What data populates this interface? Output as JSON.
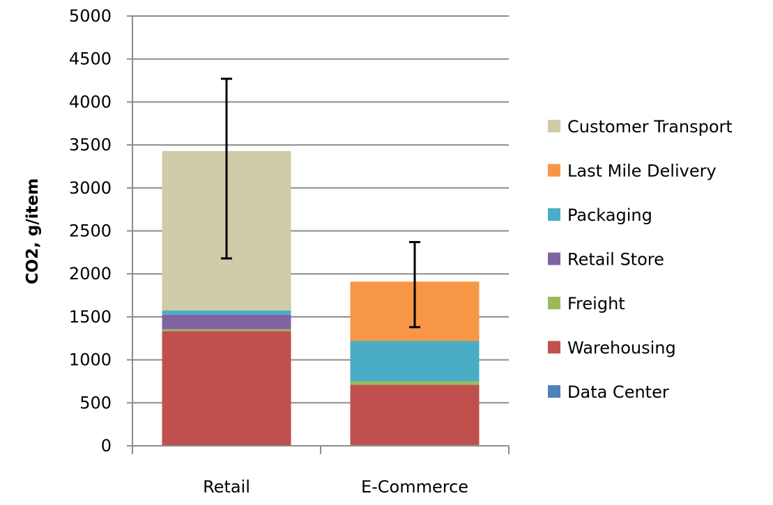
{
  "chart_data": {
    "type": "bar",
    "stacked": true,
    "title": "",
    "xlabel": "",
    "ylabel": "CO2, g/item",
    "ylim": [
      0,
      5000
    ],
    "yticks": [
      0,
      500,
      1000,
      1500,
      2000,
      2500,
      3000,
      3500,
      4000,
      4500,
      5000
    ],
    "grid": true,
    "legend_position": "right",
    "categories": [
      "Retail",
      "E-Commerce"
    ],
    "series": [
      {
        "name": "Data Center",
        "color": "#4F81BD",
        "values": [
          5,
          10
        ]
      },
      {
        "name": "Warehousing",
        "color": "#C0504D",
        "values": [
          1330,
          700
        ]
      },
      {
        "name": "Freight",
        "color": "#9BBB59",
        "values": [
          20,
          40
        ]
      },
      {
        "name": "Retail Store",
        "color": "#8064A2",
        "values": [
          170,
          0
        ]
      },
      {
        "name": "Packaging",
        "color": "#4BACC6",
        "values": [
          50,
          470
        ]
      },
      {
        "name": "Last Mile Delivery",
        "color": "#F79646",
        "values": [
          0,
          690
        ]
      },
      {
        "name": "Customer Transport",
        "color": "#D0CBA8",
        "values": [
          1855,
          0
        ]
      }
    ],
    "error_bars": [
      {
        "category": "Retail",
        "low": 2180,
        "high": 4270
      },
      {
        "category": "E-Commerce",
        "low": 1380,
        "high": 2370
      }
    ]
  }
}
